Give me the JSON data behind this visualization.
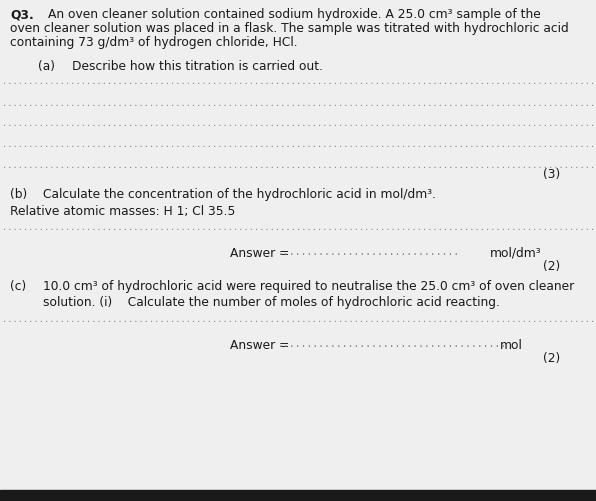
{
  "paper_color": "#efefef",
  "text_color": "#1a1a1a",
  "dot_color": "#888888",
  "title_q": "Q3.",
  "title_text1": "An oven cleaner solution contained sodium hydroxide. A 25.0 cm³ sample of the",
  "title_text2": "oven cleaner solution was placed in a flask. The sample was titrated with hydrochloric acid",
  "title_text3": "containing 73 g/dm³ of hydrogen chloride, HCl.",
  "part_a_label": "(a)",
  "part_a_text": "Describe how this titration is carried out.",
  "part_a_marks": "(3)",
  "part_b_label": "(b)",
  "part_b_text": "Calculate the concentration of the hydrochloric acid in mol/dm³.",
  "part_b_relative": "Relative atomic masses: H 1; Cl 35.5",
  "part_b_answer": "Answer = ",
  "part_b_dots": "...............................",
  "part_b_unit": "mol/dm³",
  "part_b_marks": "(2)",
  "part_c_label": "(c)",
  "part_c_text1": "10.0 cm³ of hydrochloric acid were required to neutralise the 25.0 cm³ of oven cleaner",
  "part_c_text2": "solution. (i)    Calculate the number of moles of hydrochloric acid reacting.",
  "part_c_answer": "Answer = ",
  "part_c_dots": ".......................................",
  "part_c_unit": "mol",
  "part_c_marks": "(2)",
  "fs_title": 8.8,
  "fs_body": 8.8,
  "fs_marks": 8.8,
  "fs_dots": 7.0
}
